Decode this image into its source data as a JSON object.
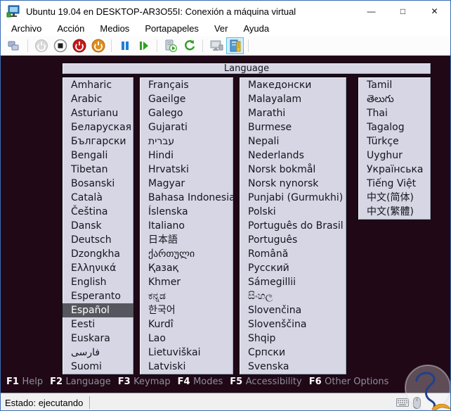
{
  "window": {
    "title": "Ubuntu 19.04 en DESKTOP-AR3O55I: Conexión a máquina virtual",
    "controls": {
      "minimize": "—",
      "maximize": "□",
      "close": "✕"
    }
  },
  "menu": {
    "items": [
      "Archivo",
      "Acción",
      "Medios",
      "Portapapeles",
      "Ver",
      "Ayuda"
    ]
  },
  "toolbar": {
    "buttons": [
      "ctrl-alt-del",
      "start",
      "turn-off",
      "shut-down",
      "save",
      "pause",
      "resume",
      "checkpoint",
      "revert",
      "basic-session",
      "enhanced-session"
    ],
    "enhanced_session_active": true
  },
  "language_panel": {
    "header": "Language",
    "columns": [
      [
        "Amharic",
        "Arabic",
        "Asturianu",
        "Беларуская",
        "Български",
        "Bengali",
        "Tibetan",
        "Bosanski",
        "Català",
        "Čeština",
        "Dansk",
        "Deutsch",
        "Dzongkha",
        "Ελληνικά",
        "English",
        "Esperanto",
        "Español",
        "Eesti",
        "Euskara",
        "فارسی",
        "Suomi"
      ],
      [
        "Français",
        "Gaeilge",
        "Galego",
        "Gujarati",
        "עברית",
        "Hindi",
        "Hrvatski",
        "Magyar",
        "Bahasa Indonesia",
        "Íslenska",
        "Italiano",
        "日本語",
        "ქართული",
        "Қазақ",
        "Khmer",
        "ಕನ್ನಡ",
        "한국어",
        "Kurdî",
        "Lao",
        "Lietuviškai",
        "Latviski"
      ],
      [
        "Македонски",
        "Malayalam",
        "Marathi",
        "Burmese",
        "Nepali",
        "Nederlands",
        "Norsk bokmål",
        "Norsk nynorsk",
        "Punjabi (Gurmukhi)",
        "Polski",
        "Português do Brasil",
        "Português",
        "Română",
        "Русский",
        "Sámegillii",
        "සිංහල",
        "Slovenčina",
        "Slovenščina",
        "Shqip",
        "Српски",
        "Svenska"
      ],
      [
        "Tamil",
        "తెలుగు",
        "Thai",
        "Tagalog",
        "Türkçe",
        "Uyghur",
        "Українська",
        "Tiếng Việt",
        "中文(简体)",
        "中文(繁體)"
      ]
    ],
    "selected": {
      "column": 0,
      "index": 16,
      "label": "Español"
    }
  },
  "function_keys": [
    {
      "key": "F1",
      "label": "Help"
    },
    {
      "key": "F2",
      "label": "Language"
    },
    {
      "key": "F3",
      "label": "Keymap"
    },
    {
      "key": "F4",
      "label": "Modes"
    },
    {
      "key": "F5",
      "label": "Accessibility"
    },
    {
      "key": "F6",
      "label": "Other Options"
    }
  ],
  "status_bar": {
    "text": "Estado: ejecutando"
  },
  "colors": {
    "accent_border": "#3b6db3",
    "vm_background": "#200817",
    "panel_background": "#d6d6e4",
    "panel_text": "#15151f",
    "selected_background": "#56565e",
    "selected_text": "#ffffff",
    "fkey_text": "#ffffff",
    "fkey_label": "#8f8f9b",
    "toolbar_active_bg": "#cfeefb",
    "toolbar_active_border": "#55c0e8"
  }
}
